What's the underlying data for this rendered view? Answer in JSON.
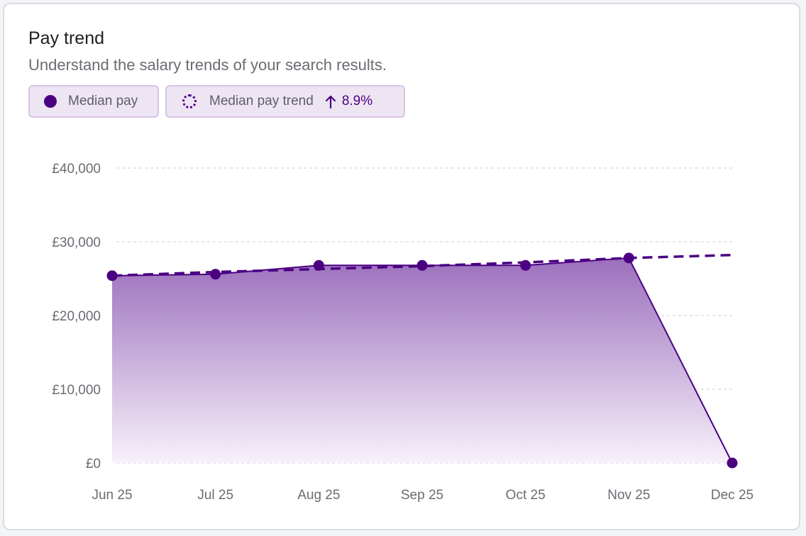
{
  "card": {
    "title": "Pay trend",
    "subtitle": "Understand the salary trends of your search results."
  },
  "legend": {
    "median_label": "Median pay",
    "trend_label": "Median pay trend",
    "trend_icon": "arrow-up-icon",
    "trend_value": "8.9%"
  },
  "colors": {
    "accent": "#4b0082",
    "area_top": "#9c6fbd",
    "area_bottom": "#f7f1fa",
    "grid": "#d8d8dc"
  },
  "chart_data": {
    "type": "area",
    "categories": [
      "Jun 25",
      "Jul 25",
      "Aug 25",
      "Sep 25",
      "Oct 25",
      "Nov 25",
      "Dec 25"
    ],
    "series": [
      {
        "name": "Median pay",
        "values": [
          25400,
          25600,
          26800,
          26800,
          26800,
          27800,
          0
        ]
      },
      {
        "name": "Median pay trend",
        "style": "dashed",
        "values": [
          25400,
          25900,
          26300,
          26700,
          27200,
          27800,
          28200
        ]
      }
    ],
    "y_ticks": [
      0,
      10000,
      20000,
      30000,
      40000
    ],
    "y_tick_labels": [
      "£0",
      "£10,000",
      "£20,000",
      "£30,000",
      "£40,000"
    ],
    "ylim": [
      0,
      40000
    ],
    "grid": true
  }
}
